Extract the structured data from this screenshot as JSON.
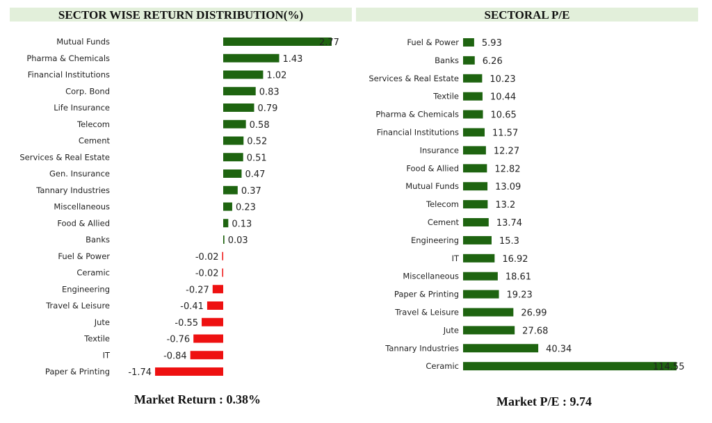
{
  "colors": {
    "positive": "#1e6410",
    "negative": "#ee1111",
    "title_bg": "#e2efda"
  },
  "chart_data": [
    {
      "type": "bar",
      "orientation": "horizontal",
      "title": "SECTOR WISE RETURN DISTRIBUTION(%)",
      "categories": [
        "Mutual Funds",
        "Pharma & Chemicals",
        "Financial Institutions",
        "Corp. Bond",
        "Life Insurance",
        "Telecom",
        "Cement",
        "Services & Real Estate",
        "Gen. Insurance",
        "Tannary Industries",
        "Miscellaneous",
        "Food & Allied",
        "Banks",
        "Fuel & Power",
        "Ceramic",
        "Engineering",
        "Travel & Leisure",
        "Jute",
        "Textile",
        "IT",
        "Paper & Printing"
      ],
      "values": [
        2.77,
        1.43,
        1.02,
        0.83,
        0.79,
        0.58,
        0.52,
        0.51,
        0.47,
        0.37,
        0.23,
        0.13,
        0.03,
        -0.02,
        -0.02,
        -0.27,
        -0.41,
        -0.55,
        -0.76,
        -0.84,
        -1.74
      ],
      "value_labels": [
        "2.77",
        "1.43",
        "1.02",
        "0.83",
        "0.79",
        "0.58",
        "0.52",
        "0.51",
        "0.47",
        "0.37",
        "0.23",
        "0.13",
        "0.03",
        "-0.02",
        "-0.02",
        "-0.27",
        "-0.41",
        "-0.55",
        "-0.76",
        "-0.84",
        "-1.74"
      ],
      "xlabel": "",
      "ylabel": "",
      "grid": false,
      "footer": "Market Return : 0.38%"
    },
    {
      "type": "bar",
      "orientation": "horizontal",
      "title": "SECTORAL P/E",
      "categories": [
        "Fuel & Power",
        "Banks",
        "Services & Real Estate",
        "Textile",
        "Pharma & Chemicals",
        "Financial Institutions",
        "Insurance",
        "Food & Allied",
        "Mutual Funds",
        "Telecom",
        "Cement",
        "Engineering",
        "IT",
        "Miscellaneous",
        "Paper & Printing",
        "Travel & Leisure",
        "Jute",
        "Tannary Industries",
        "Ceramic"
      ],
      "values": [
        5.93,
        6.26,
        10.23,
        10.44,
        10.65,
        11.57,
        12.27,
        12.82,
        13.09,
        13.2,
        13.74,
        15.3,
        16.92,
        18.61,
        19.23,
        26.99,
        27.68,
        40.34,
        114.55
      ],
      "value_labels": [
        "5.93",
        "6.26",
        "10.23",
        "10.44",
        "10.65",
        "11.57",
        "12.27",
        "12.82",
        "13.09",
        "13.2",
        "13.74",
        "15.3",
        "16.92",
        "18.61",
        "19.23",
        "26.99",
        "27.68",
        "40.34",
        "114.55"
      ],
      "xlabel": "",
      "ylabel": "",
      "grid": false,
      "footer": "Market P/E : 9.74"
    }
  ]
}
